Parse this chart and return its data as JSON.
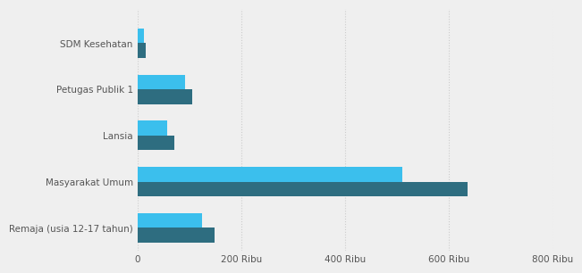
{
  "categories": [
    "SDM Kesehatan",
    "Petugas Publik 1",
    "Lansia",
    "Masyarakat Umum",
    "Remaja (usia 12-17 tahun)"
  ],
  "target_values": [
    16000,
    105000,
    72000,
    635000,
    148000
  ],
  "capaian_values": [
    13000,
    92000,
    58000,
    510000,
    125000
  ],
  "target_color": "#2e6d80",
  "capaian_color": "#3bbfed",
  "background_color": "#efefef",
  "bar_height": 0.32,
  "xlim": [
    0,
    800000
  ],
  "xticks": [
    0,
    200000,
    400000,
    600000,
    800000
  ],
  "xtick_labels": [
    "0",
    "200 Ribu",
    "400 Ribu",
    "600 Ribu",
    "800 Ribu"
  ],
  "grid_color": "#cccccc",
  "ylabel_fontsize": 7.5,
  "tick_fontsize": 7.5,
  "label_color": "#555555"
}
